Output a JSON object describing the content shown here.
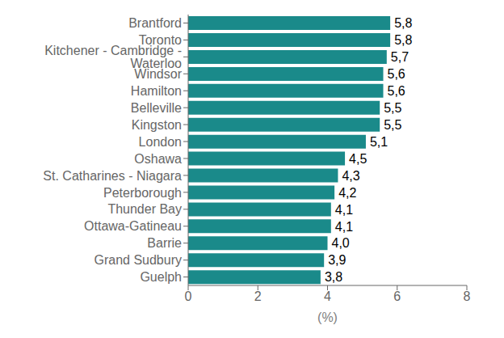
{
  "chart_data": {
    "type": "bar",
    "orientation": "horizontal",
    "categories": [
      "Guelph",
      "Grand Sudbury",
      "Barrie",
      "Ottawa-Gatineau",
      "Thunder Bay",
      "Peterborough",
      "St. Catharines - Niagara",
      "Oshawa",
      "London",
      "Kingston",
      "Belleville",
      "Hamilton",
      "Windsor",
      "Kitchener - Cambridge - Waterloo",
      "Toronto",
      "Brantford"
    ],
    "values": [
      3.8,
      3.9,
      4.0,
      4.1,
      4.1,
      4.2,
      4.3,
      4.5,
      5.1,
      5.5,
      5.5,
      5.6,
      5.6,
      5.7,
      5.8,
      5.8
    ],
    "value_labels": [
      "3,8",
      "3,9",
      "4,0",
      "4,1",
      "4,1",
      "4,2",
      "4,3",
      "4,5",
      "5,1",
      "5,5",
      "5,5",
      "5,6",
      "5,6",
      "5,7",
      "5,8",
      "5,8"
    ],
    "data_labels": true,
    "color": "#1a8a8a",
    "xlabel": "(%)",
    "xlim": [
      0,
      8
    ],
    "xticks": [
      0,
      2,
      4,
      6,
      8
    ],
    "grid": false
  }
}
